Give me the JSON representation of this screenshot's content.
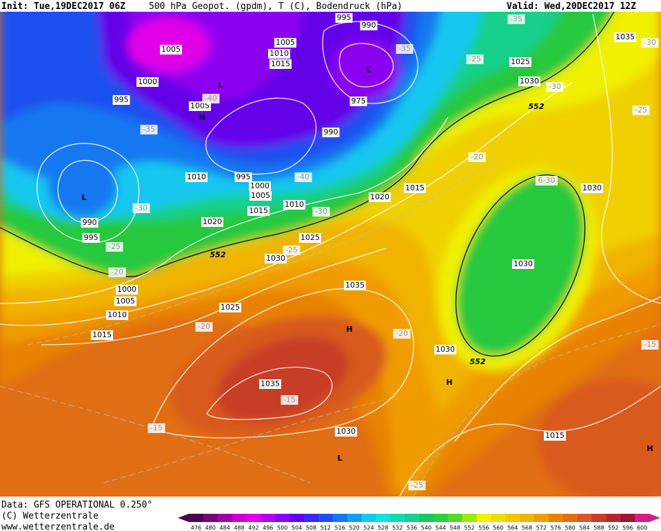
{
  "header": {
    "init": "Init: Tue,19DEC2017 06Z",
    "title": "500 hPa Geopot. (gpdm), T (C), Bodendruck (hPa)",
    "valid": "Valid: Wed,20DEC2017 12Z"
  },
  "footer": {
    "data": "Data: GFS OPERATIONAL 0.250°",
    "copyright": "(C) Wetterzentrale",
    "url": "www.wetterzentrale.de"
  },
  "legend": {
    "ticks": [
      476,
      480,
      484,
      488,
      492,
      496,
      500,
      504,
      508,
      512,
      516,
      520,
      524,
      528,
      532,
      536,
      540,
      544,
      548,
      552,
      556,
      560,
      564,
      568,
      572,
      576,
      580,
      584,
      588,
      592,
      596,
      600
    ],
    "colors": [
      "#4b0050",
      "#7b0080",
      "#a000a8",
      "#c800d0",
      "#e000e8",
      "#b400f0",
      "#8c00f0",
      "#6400e8",
      "#3c28f0",
      "#1e50f0",
      "#1478f0",
      "#14a0f0",
      "#14c8f0",
      "#14e0e0",
      "#14d8b4",
      "#14d08c",
      "#14c864",
      "#28d23c",
      "#50dc28",
      "#a0e614",
      "#f0f000",
      "#f0dc00",
      "#f0c800",
      "#f0b400",
      "#f09c00",
      "#e88200",
      "#e06e14",
      "#d85a1e",
      "#c83c28",
      "#b4282d",
      "#a01432",
      "#d21e8c"
    ]
  },
  "labels": [
    "1005",
    "1000",
    "995",
    "L",
    "1005",
    "-40",
    "H",
    "-35",
    "L",
    "990",
    "995",
    "-30",
    "-25",
    "-20",
    "1000",
    "1005",
    "1010",
    "1015",
    "1010",
    "995",
    "1000",
    "1005",
    "-40",
    "1015",
    "1010",
    "-30",
    "1020",
    "1025",
    "1030",
    "-25",
    "552",
    "1025",
    "-20",
    "1035",
    "H",
    "-20",
    "1035",
    "-15",
    "-15",
    "1030",
    "L",
    "-25",
    "1005",
    "1010",
    "1015",
    "995",
    "990",
    "L",
    "975",
    "990",
    "-35",
    "-35",
    "-25",
    "1025",
    "1030",
    "-30",
    "552",
    "1035",
    "-30",
    "-25",
    "-20",
    "1015",
    "1020",
    "6-30",
    "1030",
    "1030",
    "1030",
    "552",
    "H",
    "1015",
    "H",
    "-15"
  ]
}
